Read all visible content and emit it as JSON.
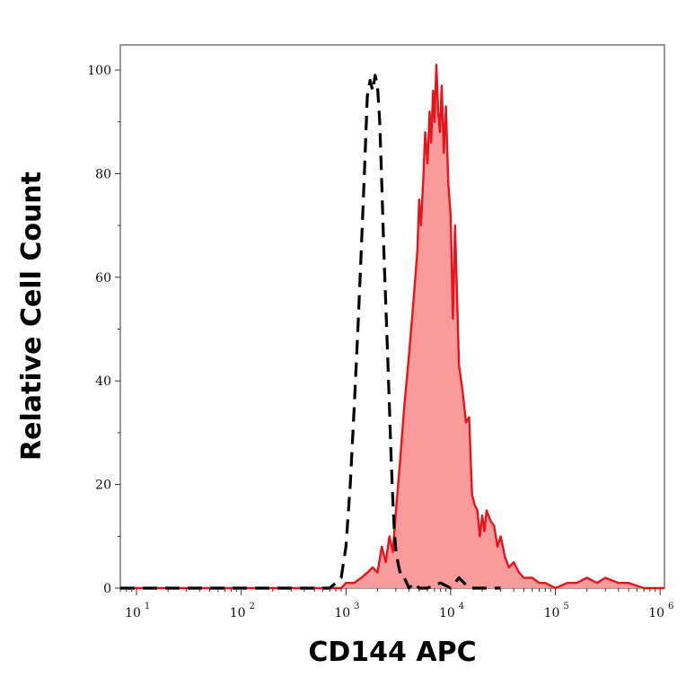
{
  "chart_data": {
    "type": "area",
    "xlabel": "CD144 APC",
    "ylabel": "Relative Cell Count",
    "x_scale": "log",
    "xlim": [
      7,
      1100000
    ],
    "ylim": [
      0,
      100
    ],
    "x_ticks": [
      {
        "value": 10,
        "base": "10",
        "exp": "1"
      },
      {
        "value": 100,
        "base": "10",
        "exp": "2"
      },
      {
        "value": 1000,
        "base": "10",
        "exp": "3"
      },
      {
        "value": 10000,
        "base": "10",
        "exp": "4"
      },
      {
        "value": 100000,
        "base": "10",
        "exp": "5"
      },
      {
        "value": 1000000,
        "base": "10",
        "exp": "6"
      }
    ],
    "y_ticks": [
      0,
      20,
      40,
      60,
      80,
      100
    ],
    "grid": false,
    "series": [
      {
        "style": "dashed",
        "color": "#000000",
        "fill": null,
        "x": [
          7,
          100,
          700,
          800,
          900,
          1000,
          1100,
          1200,
          1300,
          1400,
          1500,
          1600,
          1700,
          1800,
          1900,
          2000,
          2100,
          2200,
          2300,
          2400,
          2500,
          2600,
          2700,
          2800,
          2900,
          3000,
          3200,
          3400,
          3600,
          3800,
          4000,
          4500,
          5000,
          6000,
          8000,
          10000,
          12000,
          15000,
          20000,
          30000
        ],
        "y": [
          0,
          0,
          0,
          1,
          2,
          8,
          20,
          35,
          50,
          65,
          80,
          95,
          98,
          96,
          99,
          97,
          90,
          78,
          65,
          55,
          45,
          35,
          25,
          17,
          11,
          7,
          4,
          2,
          2,
          1,
          0,
          1,
          0,
          0,
          1,
          0,
          2,
          0,
          0,
          0
        ]
      },
      {
        "style": "solid",
        "color": "#e8141b",
        "fill": "#f99b9b",
        "x": [
          7,
          500,
          700,
          900,
          1000,
          1200,
          1400,
          1600,
          1800,
          2000,
          2200,
          2400,
          2600,
          2800,
          3000,
          3300,
          3600,
          4000,
          4400,
          4800,
          5000,
          5200,
          5500,
          5700,
          6000,
          6300,
          6500,
          6800,
          7000,
          7300,
          7600,
          7900,
          8200,
          8600,
          9000,
          9500,
          10000,
          10500,
          11000,
          12000,
          13000,
          14000,
          15000,
          16000,
          17000,
          18000,
          19000,
          20000,
          21000,
          22000,
          24000,
          26000,
          28000,
          30000,
          33000,
          36000,
          40000,
          45000,
          50000,
          60000,
          70000,
          80000,
          100000,
          130000,
          160000,
          200000,
          250000,
          300000,
          400000,
          500000,
          700000,
          1000000,
          1100000
        ],
        "y": [
          0,
          0,
          0,
          0,
          1,
          1,
          2,
          3,
          4,
          3,
          8,
          5,
          10,
          7,
          15,
          25,
          35,
          45,
          55,
          65,
          75,
          70,
          80,
          88,
          82,
          92,
          86,
          96,
          90,
          101,
          92,
          88,
          97,
          84,
          93,
          78,
          72,
          52,
          70,
          43,
          38,
          32,
          33,
          18,
          16,
          15,
          10,
          14,
          11,
          15,
          13,
          12,
          8,
          10,
          6,
          4,
          5,
          3,
          2,
          2,
          1,
          1,
          0,
          1,
          1,
          2,
          1,
          2,
          1,
          1,
          0,
          0,
          0
        ]
      }
    ]
  }
}
